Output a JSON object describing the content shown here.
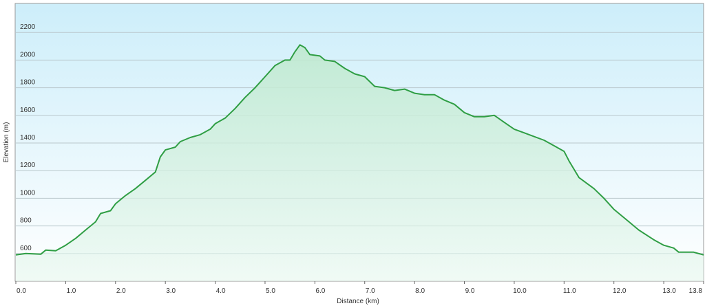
{
  "chart_data": {
    "type": "area",
    "y_label": "Elevation (m)",
    "x_label": "Distance  (km)",
    "color": "#2f9e44",
    "grid": true,
    "x": [
      0.0,
      0.2,
      0.5,
      0.6,
      0.8,
      1.0,
      1.2,
      1.4,
      1.6,
      1.7,
      1.9,
      2.0,
      2.2,
      2.4,
      2.6,
      2.8,
      2.9,
      3.0,
      3.2,
      3.3,
      3.5,
      3.7,
      3.9,
      4.0,
      4.2,
      4.4,
      4.6,
      4.8,
      5.0,
      5.2,
      5.4,
      5.5,
      5.6,
      5.7,
      5.8,
      5.9,
      6.1,
      6.2,
      6.4,
      6.6,
      6.8,
      7.0,
      7.2,
      7.4,
      7.6,
      7.8,
      8.0,
      8.2,
      8.4,
      8.6,
      8.8,
      9.0,
      9.2,
      9.4,
      9.6,
      9.8,
      10.0,
      10.3,
      10.6,
      10.8,
      11.0,
      11.1,
      11.3,
      11.6,
      11.8,
      12.0,
      12.2,
      12.5,
      12.8,
      13.0,
      13.2,
      13.3,
      13.6,
      13.8
    ],
    "values": [
      590,
      600,
      595,
      625,
      620,
      660,
      710,
      770,
      830,
      890,
      910,
      960,
      1020,
      1070,
      1130,
      1190,
      1300,
      1350,
      1370,
      1410,
      1440,
      1460,
      1500,
      1540,
      1580,
      1650,
      1730,
      1800,
      1880,
      1960,
      2000,
      2000,
      2060,
      2110,
      2090,
      2040,
      2030,
      2000,
      1990,
      1940,
      1900,
      1880,
      1810,
      1800,
      1780,
      1790,
      1760,
      1750,
      1750,
      1710,
      1680,
      1620,
      1590,
      1590,
      1600,
      1550,
      1500,
      1460,
      1420,
      1380,
      1340,
      1270,
      1150,
      1070,
      1000,
      920,
      860,
      770,
      700,
      660,
      640,
      610,
      610,
      590
    ],
    "xlim": [
      0,
      13.8
    ],
    "ylim": [
      400,
      2410
    ],
    "xticks": [
      {
        "value": 0,
        "label": "0.0"
      },
      {
        "value": 1,
        "label": "1.0"
      },
      {
        "value": 2,
        "label": "2.0"
      },
      {
        "value": 3,
        "label": "3.0"
      },
      {
        "value": 4,
        "label": "4.0"
      },
      {
        "value": 5,
        "label": "5.0"
      },
      {
        "value": 6,
        "label": "6.0"
      },
      {
        "value": 7,
        "label": "7.0"
      },
      {
        "value": 8,
        "label": "8.0"
      },
      {
        "value": 9,
        "label": "9.0"
      },
      {
        "value": 10,
        "label": "10.0"
      },
      {
        "value": 11,
        "label": "11.0"
      },
      {
        "value": 12,
        "label": "12.0"
      },
      {
        "value": 13,
        "label": "13.0"
      },
      13.8
    ],
    "yticks": [
      600,
      800,
      1000,
      1200,
      1400,
      1600,
      1800,
      2000,
      2200
    ]
  }
}
